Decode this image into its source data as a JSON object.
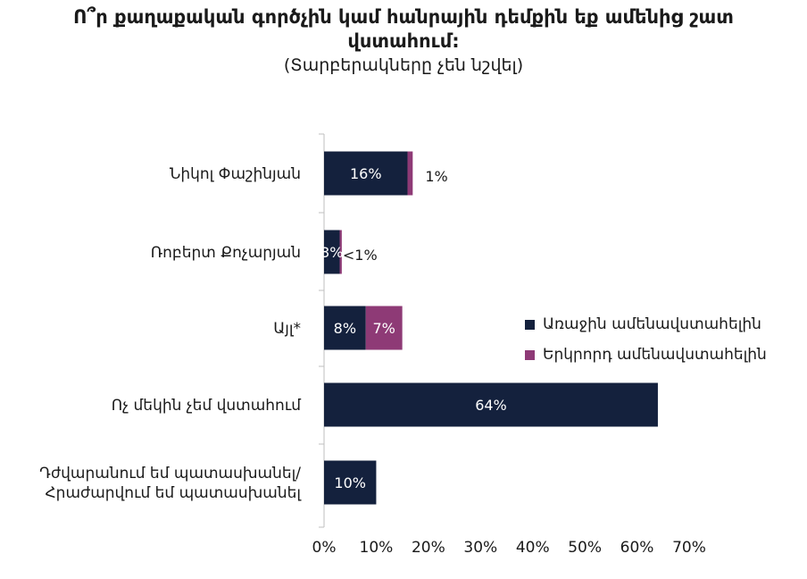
{
  "chart_data": {
    "type": "bar",
    "orientation": "horizontal",
    "stacked": true,
    "title": "Ո՞ր քաղաքական գործչին կամ հանրային դեմքին եք ամենից շատ վստահում:",
    "subtitle": "(Տարբերակները չեն նշվել)",
    "categories": [
      "Նիկոլ Փաշինյան",
      "Ռոբերտ Քոչարյան",
      "Այլ*",
      "Ոչ մեկին չեմ վստահում",
      "Դժվարանում եմ պատասխանել/ Հրաժարվում եմ պատասխանել"
    ],
    "category_lines": [
      [
        "Նիկոլ Փաշինյան"
      ],
      [
        "Ռոբերտ Քոչարյան"
      ],
      [
        "Այլ*"
      ],
      [
        "Ոչ մեկին չեմ վստահում"
      ],
      [
        "Դժվարանում եմ պատասխանել/",
        "Հրաժարվում եմ պատասխանել"
      ]
    ],
    "series": [
      {
        "name": "Առաջին ամենավստահելին",
        "color": "#14213d",
        "values": [
          16,
          3,
          8,
          64,
          10
        ],
        "labels": [
          "16%",
          "3%",
          "8%",
          "64%",
          "10%"
        ]
      },
      {
        "name": "Երկրորդ ամենավստահելին",
        "color": "#8e3a76",
        "values": [
          1,
          0.4,
          7,
          0,
          0
        ],
        "labels": [
          "1%",
          "<1%",
          "7%",
          "",
          ""
        ]
      }
    ],
    "xlim": [
      0,
      70
    ],
    "xticks": [
      0,
      10,
      20,
      30,
      40,
      50,
      60,
      70
    ],
    "xtick_labels": [
      "0%",
      "10%",
      "20%",
      "30%",
      "40%",
      "50%",
      "60%",
      "70%"
    ],
    "legend_position": "right",
    "grid": false
  }
}
